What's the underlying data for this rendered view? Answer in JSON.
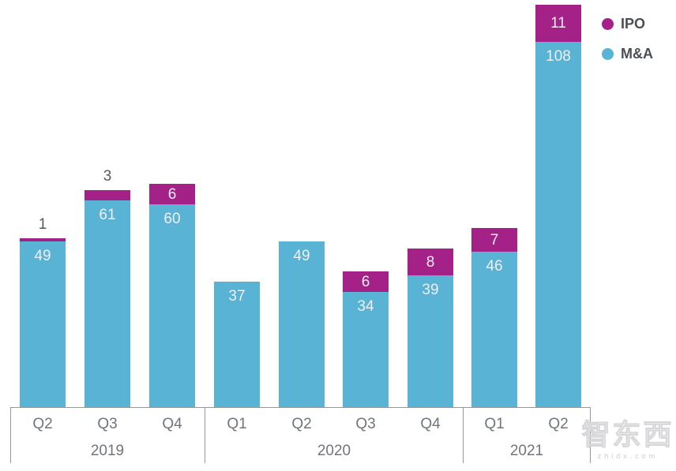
{
  "chart_data": {
    "type": "bar",
    "stacked": true,
    "title": "",
    "xlabel": "",
    "ylabel": "",
    "grid": false,
    "ylim": [
      0,
      119
    ],
    "categories": [
      "Q2",
      "Q3",
      "Q4",
      "Q1",
      "Q2",
      "Q3",
      "Q4",
      "Q1",
      "Q2"
    ],
    "year_groups": [
      {
        "label": "2019",
        "quarters": [
          "Q2",
          "Q3",
          "Q4"
        ]
      },
      {
        "label": "2020",
        "quarters": [
          "Q1",
          "Q2",
          "Q3",
          "Q4"
        ]
      },
      {
        "label": "2021",
        "quarters": [
          "Q1",
          "Q2"
        ]
      }
    ],
    "series": [
      {
        "name": "M&A",
        "color": "#58B3D5",
        "values": [
          49,
          61,
          60,
          37,
          49,
          34,
          39,
          46,
          108
        ]
      },
      {
        "name": "IPO",
        "color": "#A42188",
        "values": [
          1,
          3,
          6,
          0,
          0,
          6,
          8,
          7,
          11
        ]
      }
    ],
    "ipo_label_placement": [
      "above",
      "above",
      "inside",
      "none",
      "none",
      "inside",
      "inside",
      "inside",
      "inside"
    ],
    "legend_position": "top-right"
  },
  "legend": {
    "items": [
      {
        "label": "IPO",
        "color": "#A42188"
      },
      {
        "label": "M&A",
        "color": "#58B3D5"
      }
    ]
  },
  "watermark": {
    "text": "智东西",
    "subtext": "zhidx.com"
  }
}
